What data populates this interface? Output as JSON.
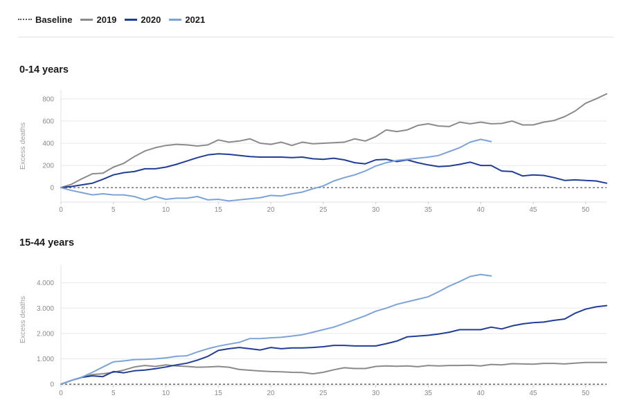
{
  "legend": [
    {
      "label": "Baseline",
      "style": "dotted",
      "color": "#555555"
    },
    {
      "label": "2019",
      "style": "solid",
      "color": "#8a8a8a"
    },
    {
      "label": "2020",
      "style": "solid",
      "color": "#1f3c96"
    },
    {
      "label": "2021",
      "style": "solid",
      "color": "#7ba3d9"
    }
  ],
  "chart_data": [
    {
      "type": "line",
      "title": "0-14 years",
      "ylabel": "Excess deaths",
      "xlim": [
        0,
        52
      ],
      "ylim": [
        -130,
        880
      ],
      "xticks": [
        0,
        5,
        10,
        15,
        20,
        25,
        30,
        35,
        40,
        45,
        50
      ],
      "yticks": [
        {
          "value": 0,
          "label": "0"
        },
        {
          "value": 200,
          "label": "200"
        },
        {
          "value": 400,
          "label": "400"
        },
        {
          "value": 600,
          "label": "600"
        },
        {
          "value": 800,
          "label": "800"
        }
      ],
      "baseline": 0,
      "series": [
        {
          "name": "2019",
          "color": "#8a8a8a",
          "x": [
            0,
            1,
            2,
            3,
            4,
            5,
            6,
            7,
            8,
            9,
            10,
            11,
            12,
            13,
            14,
            15,
            16,
            17,
            18,
            19,
            20,
            21,
            22,
            23,
            24,
            25,
            26,
            27,
            28,
            29,
            30,
            31,
            32,
            33,
            34,
            35,
            36,
            37,
            38,
            39,
            40,
            41,
            42,
            43,
            44,
            45,
            46,
            47,
            48,
            49,
            50,
            51,
            52
          ],
          "values": [
            0,
            30,
            80,
            125,
            130,
            185,
            220,
            280,
            330,
            360,
            380,
            390,
            385,
            375,
            385,
            430,
            410,
            420,
            440,
            400,
            390,
            410,
            380,
            410,
            395,
            400,
            405,
            410,
            440,
            420,
            460,
            520,
            505,
            520,
            560,
            575,
            555,
            550,
            590,
            575,
            590,
            575,
            578,
            600,
            565,
            565,
            590,
            605,
            640,
            690,
            760,
            800,
            845
          ]
        },
        {
          "name": "2020",
          "color": "#1f3c96",
          "x": [
            0,
            1,
            2,
            3,
            4,
            5,
            6,
            7,
            8,
            9,
            10,
            11,
            12,
            13,
            14,
            15,
            16,
            17,
            18,
            19,
            20,
            21,
            22,
            23,
            24,
            25,
            26,
            27,
            28,
            29,
            30,
            31,
            32,
            33,
            34,
            35,
            36,
            37,
            38,
            39,
            40,
            41,
            42,
            43,
            44,
            45,
            46,
            47,
            48,
            49,
            50,
            51,
            52
          ],
          "values": [
            0,
            10,
            25,
            40,
            75,
            115,
            135,
            145,
            170,
            170,
            185,
            210,
            240,
            270,
            295,
            305,
            300,
            290,
            280,
            275,
            275,
            275,
            270,
            275,
            260,
            255,
            265,
            250,
            225,
            215,
            250,
            255,
            235,
            250,
            225,
            205,
            190,
            195,
            210,
            230,
            200,
            200,
            150,
            145,
            105,
            115,
            110,
            90,
            65,
            70,
            65,
            60,
            40
          ]
        },
        {
          "name": "2021",
          "color": "#7ba3d9",
          "x": [
            0,
            1,
            2,
            3,
            4,
            5,
            6,
            7,
            8,
            9,
            10,
            11,
            12,
            13,
            14,
            15,
            16,
            17,
            18,
            19,
            20,
            21,
            22,
            23,
            24,
            25,
            26,
            27,
            28,
            29,
            30,
            31,
            32,
            33,
            34,
            35,
            36,
            37,
            38,
            39,
            40,
            41
          ],
          "values": [
            0,
            -25,
            -45,
            -65,
            -55,
            -65,
            -65,
            -80,
            -110,
            -80,
            -105,
            -95,
            -95,
            -80,
            -110,
            -105,
            -120,
            -110,
            -100,
            -90,
            -70,
            -75,
            -55,
            -40,
            -10,
            15,
            60,
            90,
            115,
            150,
            195,
            225,
            245,
            255,
            265,
            275,
            290,
            325,
            360,
            410,
            435,
            415
          ]
        }
      ]
    },
    {
      "type": "line",
      "title": "15-44 years",
      "ylabel": "Excess deaths",
      "xlim": [
        0,
        52
      ],
      "ylim": [
        -50,
        4700
      ],
      "xticks": [
        0,
        5,
        10,
        15,
        20,
        25,
        30,
        35,
        40,
        45,
        50
      ],
      "yticks": [
        {
          "value": 0,
          "label": "0"
        },
        {
          "value": 1000,
          "label": "1.000"
        },
        {
          "value": 2000,
          "label": "2.000"
        },
        {
          "value": 3000,
          "label": "3.000"
        },
        {
          "value": 4000,
          "label": "4.000"
        }
      ],
      "baseline": 0,
      "series": [
        {
          "name": "2019",
          "color": "#8a8a8a",
          "x": [
            0,
            1,
            2,
            3,
            4,
            5,
            6,
            7,
            8,
            9,
            10,
            11,
            12,
            13,
            14,
            15,
            16,
            17,
            18,
            19,
            20,
            21,
            22,
            23,
            24,
            25,
            26,
            27,
            28,
            29,
            30,
            31,
            32,
            33,
            34,
            35,
            36,
            37,
            38,
            39,
            40,
            41,
            42,
            43,
            44,
            45,
            46,
            47,
            48,
            49,
            50,
            51,
            52
          ],
          "values": [
            0,
            150,
            280,
            380,
            410,
            470,
            560,
            680,
            740,
            700,
            760,
            720,
            700,
            670,
            680,
            700,
            670,
            580,
            550,
            520,
            500,
            490,
            470,
            460,
            410,
            470,
            570,
            650,
            620,
            620,
            700,
            720,
            710,
            720,
            690,
            740,
            720,
            740,
            740,
            750,
            720,
            780,
            760,
            810,
            800,
            790,
            820,
            820,
            800,
            830,
            860,
            860,
            860
          ]
        },
        {
          "name": "2020",
          "color": "#1f3c96",
          "x": [
            0,
            1,
            2,
            3,
            4,
            5,
            6,
            7,
            8,
            9,
            10,
            11,
            12,
            13,
            14,
            15,
            16,
            17,
            18,
            19,
            20,
            21,
            22,
            23,
            24,
            25,
            26,
            27,
            28,
            29,
            30,
            31,
            32,
            33,
            34,
            35,
            36,
            37,
            38,
            39,
            40,
            41,
            42,
            43,
            44,
            45,
            46,
            47,
            48,
            49,
            50,
            51,
            52
          ],
          "values": [
            0,
            150,
            270,
            330,
            300,
            500,
            450,
            530,
            560,
            610,
            680,
            760,
            830,
            950,
            1100,
            1330,
            1400,
            1450,
            1400,
            1350,
            1450,
            1400,
            1430,
            1430,
            1450,
            1480,
            1530,
            1530,
            1510,
            1510,
            1510,
            1600,
            1700,
            1870,
            1900,
            1930,
            1980,
            2050,
            2150,
            2150,
            2150,
            2250,
            2180,
            2300,
            2380,
            2430,
            2450,
            2520,
            2570,
            2800,
            2960,
            3050,
            3100
          ]
        },
        {
          "name": "2021",
          "color": "#7ba3d9",
          "x": [
            0,
            1,
            2,
            3,
            4,
            5,
            6,
            7,
            8,
            9,
            10,
            11,
            12,
            13,
            14,
            15,
            16,
            17,
            18,
            19,
            20,
            21,
            22,
            23,
            24,
            25,
            26,
            27,
            28,
            29,
            30,
            31,
            32,
            33,
            34,
            35,
            36,
            37,
            38,
            39,
            40,
            41
          ],
          "values": [
            0,
            150,
            280,
            470,
            680,
            880,
            920,
            970,
            980,
            1000,
            1040,
            1100,
            1120,
            1270,
            1400,
            1500,
            1580,
            1650,
            1800,
            1800,
            1830,
            1850,
            1900,
            1950,
            2050,
            2150,
            2250,
            2400,
            2550,
            2700,
            2880,
            3000,
            3150,
            3250,
            3350,
            3450,
            3650,
            3870,
            4050,
            4250,
            4330,
            4270
          ]
        }
      ]
    }
  ]
}
